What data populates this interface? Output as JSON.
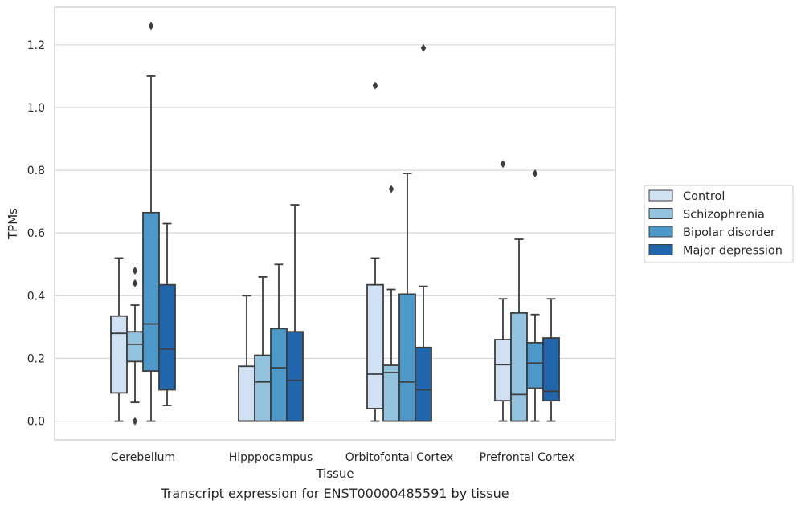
{
  "caption": "Transcript expression for ENST00000485591 by tissue",
  "chart_data": {
    "type": "box",
    "xlabel": "Tissue",
    "ylabel": "TPMs",
    "ylim": [
      -0.06,
      1.32
    ],
    "yticks": [
      0.0,
      0.2,
      0.4,
      0.6,
      0.8,
      1.0,
      1.2
    ],
    "ytick_labels": [
      "0.0",
      "0.2",
      "0.4",
      "0.6",
      "0.8",
      "1.0",
      "1.2"
    ],
    "grid": "horizontal",
    "legend_position": "right",
    "categories": [
      "Cerebellum",
      "Hipppocampus",
      "Orbitofontal Cortex",
      "Prefrontal Cortex"
    ],
    "series": [
      {
        "name": "Control",
        "color": "#cfe1f2",
        "boxes": [
          {
            "whislo": 0.0,
            "q1": 0.09,
            "med": 0.28,
            "q3": 0.335,
            "whishi": 0.52,
            "fliers": []
          },
          {
            "whislo": 0.0,
            "q1": 0.0,
            "med": 0.0,
            "q3": 0.175,
            "whishi": 0.4,
            "fliers": []
          },
          {
            "whislo": 0.0,
            "q1": 0.04,
            "med": 0.15,
            "q3": 0.435,
            "whishi": 0.52,
            "fliers": [
              1.07
            ]
          },
          {
            "whislo": 0.0,
            "q1": 0.065,
            "med": 0.18,
            "q3": 0.26,
            "whishi": 0.39,
            "fliers": [
              0.82
            ]
          }
        ]
      },
      {
        "name": "Schizophrenia",
        "color": "#93c3df",
        "boxes": [
          {
            "whislo": 0.06,
            "q1": 0.19,
            "med": 0.245,
            "q3": 0.285,
            "whishi": 0.37,
            "fliers": [
              0.48,
              0.44,
              0.0
            ]
          },
          {
            "whislo": 0.0,
            "q1": 0.0,
            "med": 0.125,
            "q3": 0.21,
            "whishi": 0.46,
            "fliers": []
          },
          {
            "whislo": 0.0,
            "q1": 0.0,
            "med": 0.155,
            "q3": 0.178,
            "whishi": 0.42,
            "fliers": [
              0.74
            ]
          },
          {
            "whislo": 0.0,
            "q1": 0.0,
            "med": 0.085,
            "q3": 0.345,
            "whishi": 0.58,
            "fliers": []
          }
        ]
      },
      {
        "name": "Bipolar disorder",
        "color": "#4b98c9",
        "boxes": [
          {
            "whislo": 0.0,
            "q1": 0.16,
            "med": 0.31,
            "q3": 0.665,
            "whishi": 1.1,
            "fliers": [
              1.26
            ]
          },
          {
            "whislo": 0.0,
            "q1": 0.0,
            "med": 0.17,
            "q3": 0.295,
            "whishi": 0.5,
            "fliers": []
          },
          {
            "whislo": 0.0,
            "q1": 0.0,
            "med": 0.125,
            "q3": 0.405,
            "whishi": 0.79,
            "fliers": []
          },
          {
            "whislo": 0.0,
            "q1": 0.105,
            "med": 0.185,
            "q3": 0.25,
            "whishi": 0.34,
            "fliers": [
              0.79
            ]
          }
        ]
      },
      {
        "name": "Major depression",
        "color": "#2166ac",
        "boxes": [
          {
            "whislo": 0.05,
            "q1": 0.1,
            "med": 0.23,
            "q3": 0.435,
            "whishi": 0.63,
            "fliers": []
          },
          {
            "whislo": 0.0,
            "q1": 0.0,
            "med": 0.13,
            "q3": 0.285,
            "whishi": 0.69,
            "fliers": []
          },
          {
            "whislo": 0.0,
            "q1": 0.0,
            "med": 0.1,
            "q3": 0.235,
            "whishi": 0.43,
            "fliers": [
              1.19
            ]
          },
          {
            "whislo": 0.0,
            "q1": 0.065,
            "med": 0.095,
            "q3": 0.265,
            "whishi": 0.39,
            "fliers": []
          }
        ]
      }
    ]
  }
}
